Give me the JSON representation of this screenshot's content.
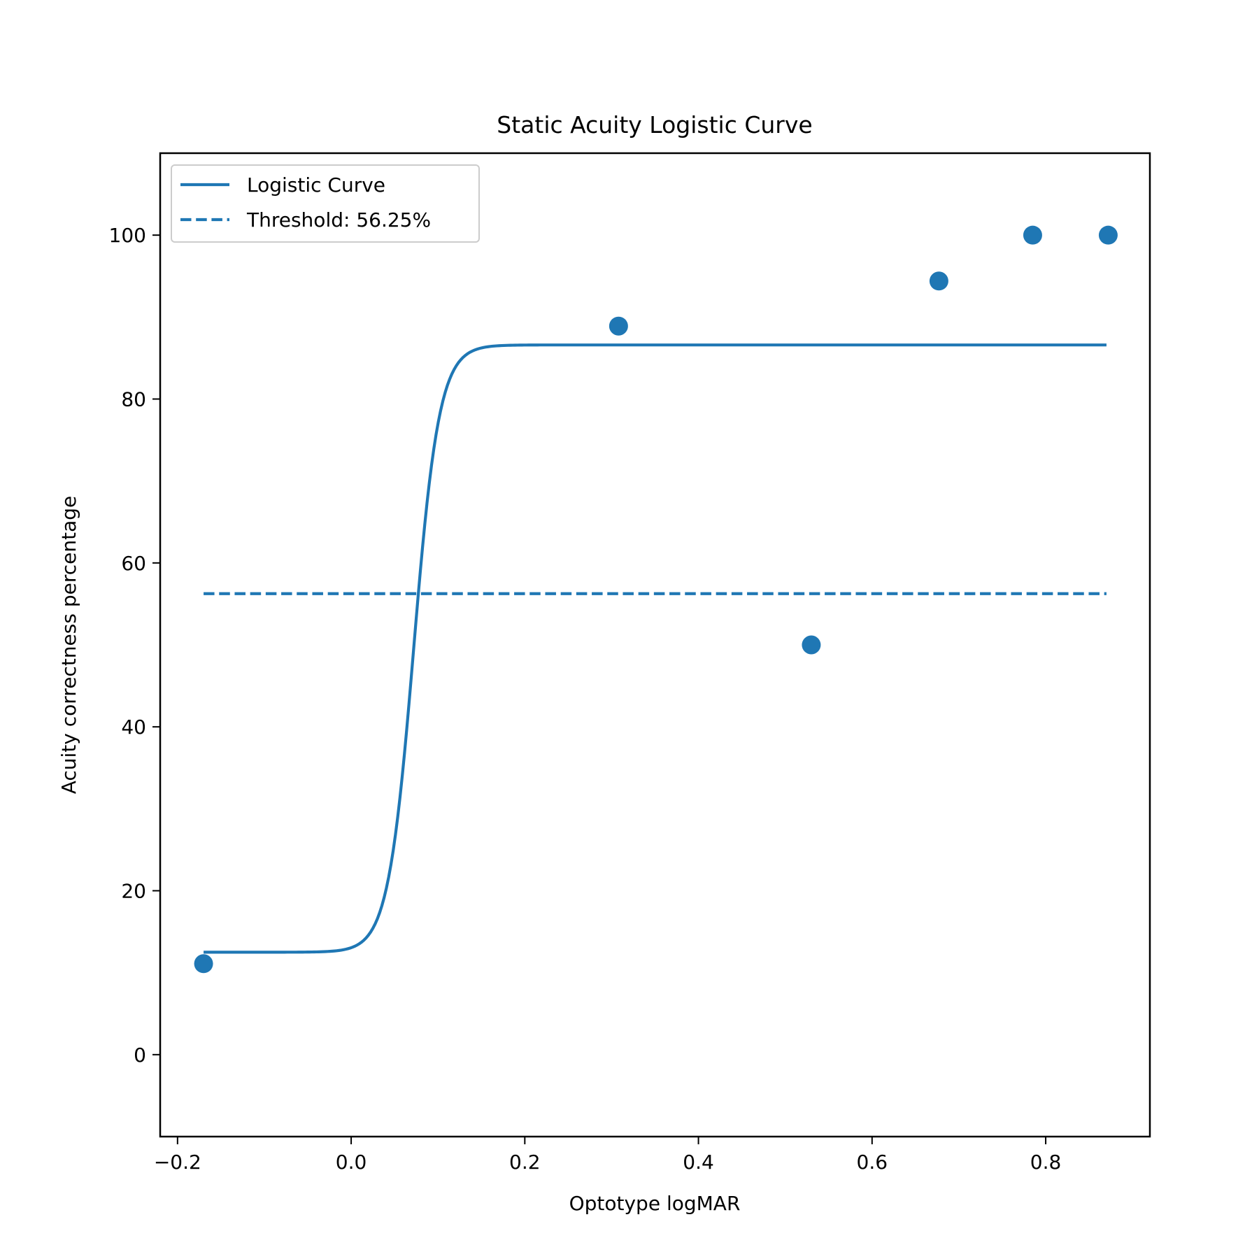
{
  "chart_data": {
    "type": "line",
    "title": "Static Acuity Logistic Curve",
    "xlabel": "Optotype logMAR",
    "ylabel": "Acuity correctness percentage",
    "xlim": [
      -0.22,
      0.92
    ],
    "ylim": [
      -10,
      110
    ],
    "xticks": [
      -0.2,
      0.0,
      0.2,
      0.4,
      0.6,
      0.8
    ],
    "xtick_labels": [
      "−0.2",
      "0.0",
      "0.2",
      "0.4",
      "0.6",
      "0.8"
    ],
    "yticks": [
      0,
      20,
      40,
      60,
      80,
      100
    ],
    "ytick_labels": [
      "0",
      "20",
      "40",
      "60",
      "80",
      "100"
    ],
    "grid": false,
    "legend_position": "top-left",
    "color": "#1f77b4",
    "series": [
      {
        "name": "Logistic Curve",
        "kind": "line",
        "style": "solid",
        "params": {
          "lower": 12.5,
          "upper": 86.6,
          "midpoint": 0.072,
          "slope": 68
        },
        "x_range": [
          -0.17,
          0.87
        ]
      },
      {
        "name": "Threshold: 56.25%",
        "kind": "line",
        "style": "dashed",
        "y": 56.25,
        "x_range": [
          -0.17,
          0.87
        ]
      },
      {
        "name": "",
        "kind": "scatter",
        "x": [
          -0.17,
          0.308,
          0.53,
          0.677,
          0.785,
          0.872
        ],
        "y": [
          11.1,
          88.9,
          50.0,
          94.4,
          100.0,
          100.0
        ]
      }
    ]
  }
}
